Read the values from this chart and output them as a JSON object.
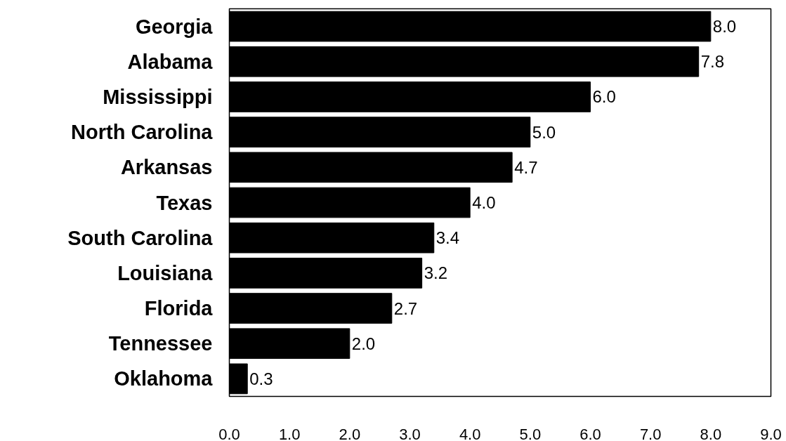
{
  "chart_data": {
    "type": "bar",
    "orientation": "horizontal",
    "categories": [
      "Georgia",
      "Alabama",
      "Mississippi",
      "North Carolina",
      "Arkansas",
      "Texas",
      "South Carolina",
      "Louisiana",
      "Florida",
      "Tennessee",
      "Oklahoma"
    ],
    "values": [
      8.0,
      7.8,
      6.0,
      5.0,
      4.7,
      4.0,
      3.4,
      3.2,
      2.7,
      2.0,
      0.3
    ],
    "value_labels": [
      "8.0",
      "7.8",
      "6.0",
      "5.0",
      "4.7",
      "4.0",
      "3.4",
      "3.2",
      "2.7",
      "2.0",
      "0.3"
    ],
    "color": "#000000",
    "grid": false,
    "xlim": [
      0,
      9
    ],
    "xticks": [
      {
        "value": 0,
        "label": "0.0"
      },
      {
        "value": 1,
        "label": "1.0"
      },
      {
        "value": 2,
        "label": "2.0"
      },
      {
        "value": 3,
        "label": "3.0"
      },
      {
        "value": 4,
        "label": "4.0"
      },
      {
        "value": 5,
        "label": "5.0"
      },
      {
        "value": 6,
        "label": "6.0"
      },
      {
        "value": 7,
        "label": "7.0"
      },
      {
        "value": 8,
        "label": "8.0"
      },
      {
        "value": 9,
        "label": "9.0"
      }
    ]
  }
}
